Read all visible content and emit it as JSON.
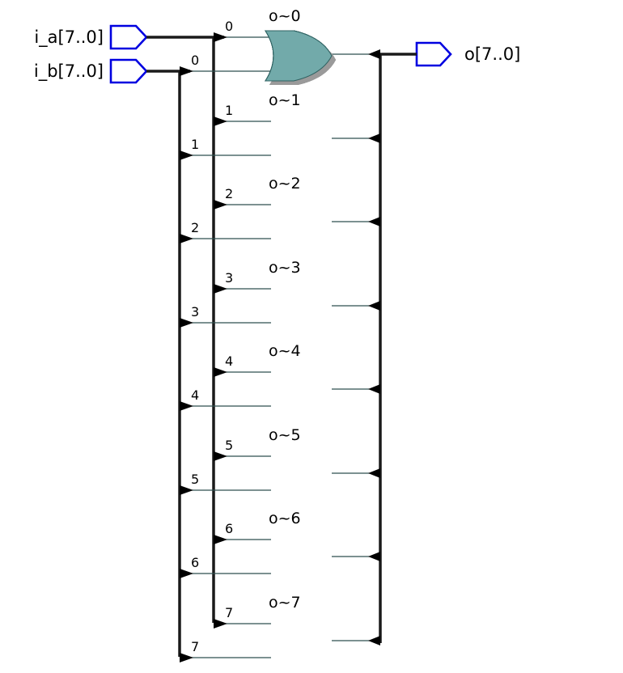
{
  "inputs": [
    {
      "name": "i_a[7..0]"
    },
    {
      "name": "i_b[7..0]"
    }
  ],
  "output": {
    "name": "o[7..0]"
  },
  "gates": [
    {
      "label": "o~0",
      "a_bit": "0",
      "b_bit": "0"
    },
    {
      "label": "o~1",
      "a_bit": "1",
      "b_bit": "1"
    },
    {
      "label": "o~2",
      "a_bit": "2",
      "b_bit": "2"
    },
    {
      "label": "o~3",
      "a_bit": "3",
      "b_bit": "3"
    },
    {
      "label": "o~4",
      "a_bit": "4",
      "b_bit": "4"
    },
    {
      "label": "o~5",
      "a_bit": "5",
      "b_bit": "5"
    },
    {
      "label": "o~6",
      "a_bit": "6",
      "b_bit": "6"
    },
    {
      "label": "o~7",
      "a_bit": "7",
      "b_bit": "7"
    }
  ],
  "colors": {
    "gate_fill": "#72aaaa",
    "port_outline": "#0000e0",
    "bus": "#1a1a1a",
    "shadow": "#9a9a9a"
  }
}
